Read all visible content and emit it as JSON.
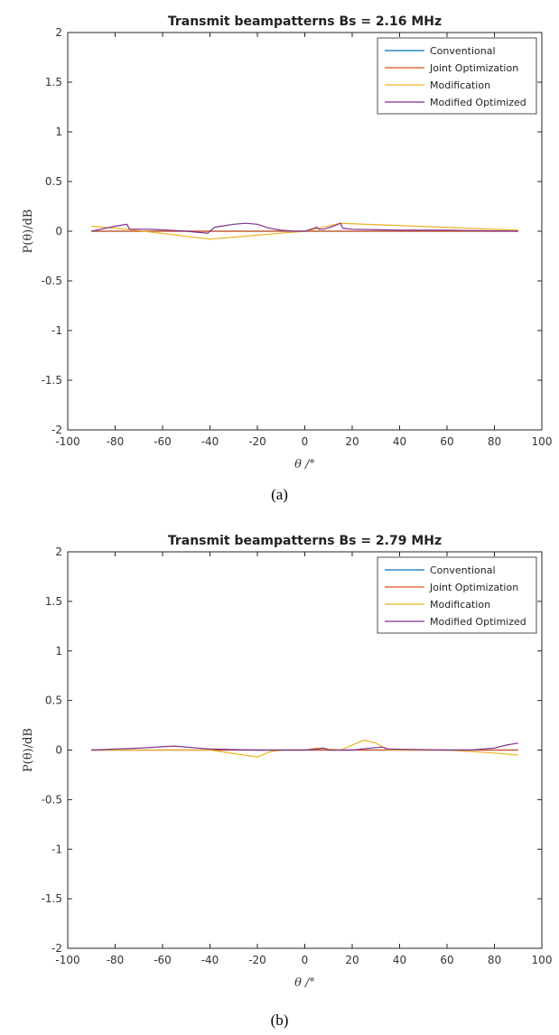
{
  "chart_data": [
    {
      "type": "line",
      "title": "Transmit beampatterns Bs = 2.16 MHz",
      "xlabel": "θ /°",
      "ylabel": "P(θ)/dB",
      "xlim": [
        -100,
        100
      ],
      "ylim": [
        -2,
        2
      ],
      "xticks": [
        "-100",
        "-80",
        "-60",
        "-40",
        "-20",
        "0",
        "20",
        "40",
        "60",
        "80",
        "100"
      ],
      "yticks": [
        "2",
        "1.5",
        "1",
        "0.5",
        "0",
        "-0.5",
        "-1",
        "-1.5",
        "-2"
      ],
      "legend_position": "top-right",
      "grid": false,
      "series": [
        {
          "name": "Conventional",
          "color": "#0072BD",
          "x": [
            -90,
            90
          ],
          "y": [
            0,
            0
          ]
        },
        {
          "name": "Joint Optimization",
          "color": "#D95319",
          "x": [
            -90,
            90
          ],
          "y": [
            0,
            0
          ]
        },
        {
          "name": "Modification",
          "color": "#EDB120",
          "x": [
            -90,
            -75,
            -40,
            -10,
            0,
            15,
            90
          ],
          "y": [
            0.05,
            0.02,
            -0.08,
            -0.02,
            0,
            0.08,
            0.01
          ]
        },
        {
          "name": "Modified Optimized",
          "color": "#7E2F8E",
          "x": [
            -90,
            -80,
            -75,
            -74,
            -65,
            -50,
            -41,
            -38,
            -30,
            -25,
            -20,
            -15,
            -10,
            -5,
            0,
            4,
            5,
            6,
            8,
            12,
            14,
            15,
            16,
            20,
            40,
            60,
            90
          ],
          "y": [
            0,
            0.05,
            0.07,
            0.02,
            0.02,
            0,
            -0.02,
            0.04,
            0.07,
            0.08,
            0.07,
            0.03,
            0.01,
            0,
            0,
            0.03,
            0.04,
            0.02,
            0.02,
            0.05,
            0.07,
            0.08,
            0.03,
            0.02,
            0.01,
            0.01,
            0
          ]
        }
      ]
    },
    {
      "type": "line",
      "title": "Transmit beampatterns Bs = 2.79 MHz",
      "xlabel": "θ /°",
      "ylabel": "P(θ)/dB",
      "xlim": [
        -100,
        100
      ],
      "ylim": [
        -2,
        2
      ],
      "xticks": [
        "-100",
        "-80",
        "-60",
        "-40",
        "-20",
        "0",
        "20",
        "40",
        "60",
        "80",
        "100"
      ],
      "yticks": [
        "2",
        "1.5",
        "1",
        "0.5",
        "0",
        "-0.5",
        "-1",
        "-1.5",
        "-2"
      ],
      "legend_position": "top-right",
      "grid": false,
      "series": [
        {
          "name": "Conventional",
          "color": "#0072BD",
          "x": [
            -90,
            90
          ],
          "y": [
            0,
            0
          ]
        },
        {
          "name": "Joint Optimization",
          "color": "#D95319",
          "x": [
            -90,
            90
          ],
          "y": [
            0,
            0
          ]
        },
        {
          "name": "Modification",
          "color": "#EDB120",
          "x": [
            -90,
            -40,
            -20,
            -15,
            -10,
            0,
            5,
            15,
            25,
            30,
            35,
            60,
            80,
            90
          ],
          "y": [
            0,
            0,
            -0.07,
            -0.02,
            0,
            0,
            0.02,
            0,
            0.1,
            0.07,
            0,
            0,
            -0.03,
            -0.05
          ]
        },
        {
          "name": "Modified Optimized",
          "color": "#7E2F8E",
          "x": [
            -90,
            -70,
            -55,
            -45,
            -40,
            -20,
            0,
            5,
            8,
            10,
            20,
            28,
            33,
            35,
            60,
            70,
            80,
            85,
            90
          ],
          "y": [
            0,
            0.02,
            0.04,
            0.02,
            0.01,
            0,
            0,
            0.01,
            0.02,
            0,
            0,
            0.02,
            0.03,
            0.01,
            0,
            0,
            0.02,
            0.05,
            0.07
          ]
        }
      ]
    }
  ],
  "captions": [
    "(a)",
    "(b)"
  ]
}
